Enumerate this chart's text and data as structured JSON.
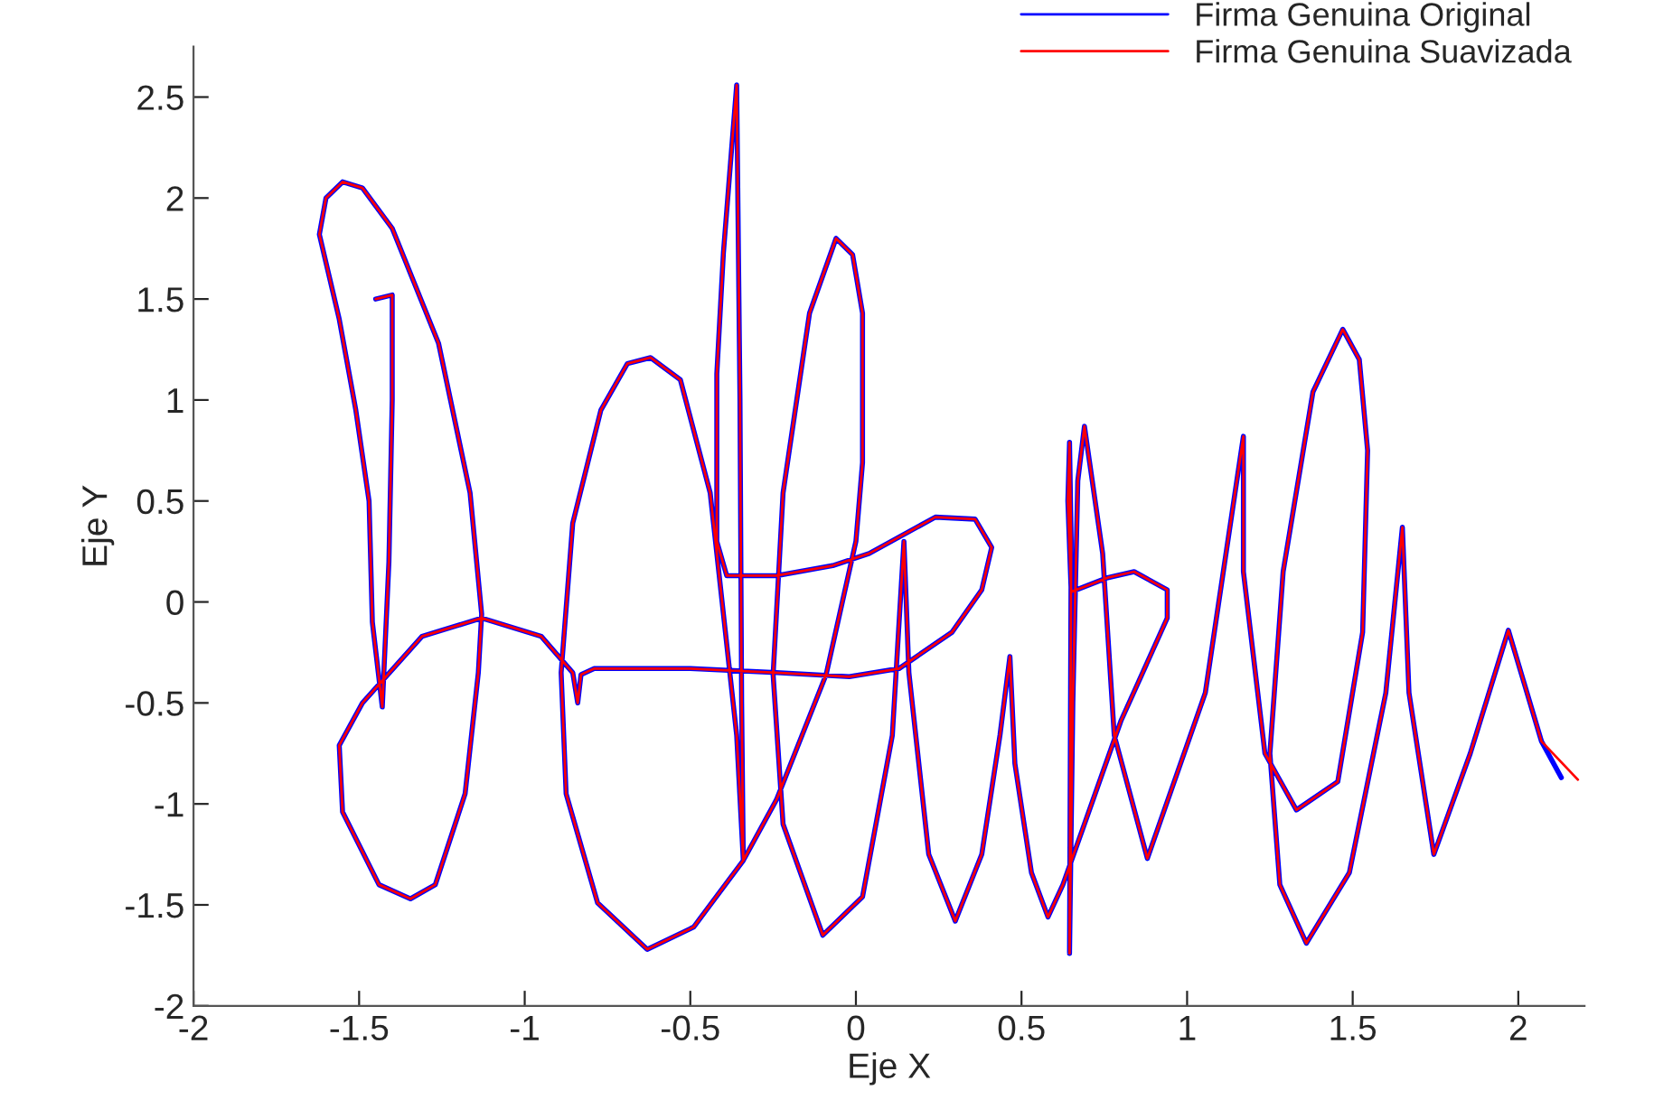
{
  "chart_data": {
    "type": "line",
    "xlabel": "Eje X",
    "ylabel": "Eje Y",
    "legend": "top right",
    "grid": false,
    "marker": "none",
    "line_style": "solid",
    "xlim": [
      -2,
      2.2
    ],
    "xticks": [
      -2,
      -1.5,
      -1,
      -0.5,
      0,
      0.5,
      1,
      1.5,
      2
    ],
    "ylim": [
      -2,
      2.75
    ],
    "yticks": [
      -2,
      -1.5,
      -1,
      -0.5,
      0,
      0.5,
      1,
      1.5,
      2,
      2.5
    ],
    "series": [
      {
        "name": "Firma Genuina Original",
        "color": "#0000ff",
        "x": [
          -1.45,
          -1.4,
          -1.4,
          -1.41,
          -1.43,
          -1.46,
          -1.47,
          -1.51,
          -1.56,
          -1.62,
          -1.6,
          -1.55,
          -1.49,
          -1.4,
          -1.26,
          -1.165,
          -1.13,
          -1.14,
          -1.18,
          -1.27,
          -1.345,
          -1.44,
          -1.55,
          -1.56,
          -1.49,
          -1.31,
          -1.13,
          -0.95,
          -0.855,
          -0.84,
          -0.83,
          -0.79,
          -0.5,
          -0.24,
          -0.02,
          0.13,
          0.29,
          0.38,
          0.41,
          0.36,
          0.24,
          0.04,
          -0.07,
          -0.24,
          -0.39,
          -0.42,
          -0.42,
          -0.4,
          -0.36,
          -0.35,
          -0.345,
          -0.34,
          -0.36,
          -0.4,
          -0.44,
          -0.53,
          -0.62,
          -0.69,
          -0.77,
          -0.855,
          -0.89,
          -0.875,
          -0.78,
          -0.63,
          -0.49,
          -0.34,
          -0.24,
          -0.09,
          0.0,
          0.02,
          0.02,
          -0.01,
          -0.06,
          -0.14,
          -0.22,
          -0.25,
          -0.22,
          -0.1,
          0.02,
          0.11,
          0.145,
          0.16,
          0.22,
          0.3,
          0.38,
          0.435,
          0.465,
          0.48,
          0.53,
          0.58,
          0.625,
          0.69,
          0.8,
          0.94,
          0.94,
          0.84,
          0.76,
          0.65,
          0.64,
          0.645,
          0.65,
          0.645,
          0.655,
          0.67,
          0.69,
          0.745,
          0.78,
          0.88,
          1.055,
          1.17,
          1.17,
          1.235,
          1.33,
          1.455,
          1.53,
          1.545,
          1.52,
          1.47,
          1.38,
          1.29,
          1.25,
          1.28,
          1.36,
          1.49,
          1.6,
          1.65,
          1.67,
          1.745,
          1.855,
          1.97,
          2.07,
          2.13
        ],
        "values": [
          1.5,
          1.52,
          1.0,
          0.2,
          -0.52,
          -0.1,
          0.5,
          0.95,
          1.4,
          1.82,
          2.0,
          2.08,
          2.05,
          1.85,
          1.28,
          0.54,
          -0.06,
          -0.35,
          -0.95,
          -1.4,
          -1.47,
          -1.4,
          -1.04,
          -0.71,
          -0.5,
          -0.17,
          -0.08,
          -0.17,
          -0.35,
          -0.5,
          -0.36,
          -0.33,
          -0.33,
          -0.35,
          -0.37,
          -0.33,
          -0.15,
          0.06,
          0.27,
          0.41,
          0.42,
          0.24,
          0.18,
          0.13,
          0.13,
          0.3,
          1.13,
          1.73,
          2.56,
          1.0,
          -0.5,
          -1.28,
          -0.66,
          -0.06,
          0.54,
          1.1,
          1.21,
          1.18,
          0.95,
          0.39,
          -0.35,
          -0.95,
          -1.49,
          -1.72,
          -1.61,
          -1.28,
          -0.98,
          -0.36,
          0.3,
          0.69,
          1.43,
          1.72,
          1.8,
          1.43,
          0.54,
          -0.36,
          -1.1,
          -1.65,
          -1.46,
          -0.66,
          0.3,
          -0.35,
          -1.25,
          -1.58,
          -1.25,
          -0.66,
          -0.27,
          -0.8,
          -1.34,
          -1.56,
          -1.4,
          -1.1,
          -0.59,
          -0.08,
          0.06,
          0.15,
          0.12,
          0.05,
          0.5,
          0.79,
          0.3,
          -1.74,
          -0.5,
          0.6,
          0.87,
          0.24,
          -0.66,
          -1.27,
          -0.45,
          0.82,
          0.15,
          -0.75,
          -1.03,
          -0.89,
          -0.15,
          0.75,
          1.2,
          1.35,
          1.04,
          0.15,
          -0.75,
          -1.4,
          -1.69,
          -1.34,
          -0.45,
          0.37,
          -0.45,
          -1.25,
          -0.75,
          -0.14,
          -0.69,
          -0.87
        ]
      },
      {
        "name": "Firma Genuina Suavizada",
        "color": "#ff0000",
        "x": [
          -1.45,
          -1.4,
          -1.4,
          -1.41,
          -1.43,
          -1.46,
          -1.47,
          -1.51,
          -1.56,
          -1.62,
          -1.6,
          -1.55,
          -1.49,
          -1.4,
          -1.26,
          -1.165,
          -1.13,
          -1.14,
          -1.18,
          -1.27,
          -1.345,
          -1.44,
          -1.55,
          -1.56,
          -1.49,
          -1.31,
          -1.13,
          -0.95,
          -0.855,
          -0.84,
          -0.83,
          -0.79,
          -0.5,
          -0.24,
          -0.02,
          0.13,
          0.29,
          0.38,
          0.41,
          0.36,
          0.24,
          0.04,
          -0.07,
          -0.24,
          -0.39,
          -0.42,
          -0.42,
          -0.4,
          -0.36,
          -0.35,
          -0.345,
          -0.34,
          -0.36,
          -0.4,
          -0.44,
          -0.53,
          -0.62,
          -0.69,
          -0.77,
          -0.855,
          -0.89,
          -0.875,
          -0.78,
          -0.63,
          -0.49,
          -0.34,
          -0.24,
          -0.09,
          0.0,
          0.02,
          0.02,
          -0.01,
          -0.06,
          -0.14,
          -0.22,
          -0.25,
          -0.22,
          -0.1,
          0.02,
          0.11,
          0.145,
          0.16,
          0.22,
          0.3,
          0.38,
          0.435,
          0.465,
          0.48,
          0.53,
          0.58,
          0.625,
          0.69,
          0.8,
          0.94,
          0.94,
          0.84,
          0.76,
          0.65,
          0.64,
          0.645,
          0.65,
          0.645,
          0.655,
          0.67,
          0.69,
          0.745,
          0.78,
          0.88,
          1.055,
          1.17,
          1.17,
          1.235,
          1.33,
          1.455,
          1.53,
          1.545,
          1.52,
          1.47,
          1.38,
          1.29,
          1.25,
          1.28,
          1.36,
          1.49,
          1.6,
          1.65,
          1.67,
          1.745,
          1.855,
          1.97,
          2.07,
          2.18
        ],
        "values": [
          1.5,
          1.52,
          1.0,
          0.2,
          -0.52,
          -0.1,
          0.5,
          0.95,
          1.4,
          1.82,
          2.0,
          2.08,
          2.05,
          1.85,
          1.28,
          0.54,
          -0.06,
          -0.35,
          -0.95,
          -1.4,
          -1.47,
          -1.4,
          -1.04,
          -0.71,
          -0.5,
          -0.17,
          -0.08,
          -0.17,
          -0.35,
          -0.5,
          -0.36,
          -0.33,
          -0.33,
          -0.35,
          -0.37,
          -0.33,
          -0.15,
          0.06,
          0.27,
          0.41,
          0.42,
          0.24,
          0.18,
          0.13,
          0.13,
          0.3,
          1.13,
          1.73,
          2.56,
          1.0,
          -0.5,
          -1.28,
          -0.66,
          -0.06,
          0.54,
          1.1,
          1.21,
          1.18,
          0.95,
          0.39,
          -0.35,
          -0.95,
          -1.49,
          -1.72,
          -1.61,
          -1.28,
          -0.98,
          -0.36,
          0.3,
          0.69,
          1.43,
          1.72,
          1.8,
          1.43,
          0.54,
          -0.36,
          -1.1,
          -1.65,
          -1.46,
          -0.66,
          0.3,
          -0.35,
          -1.25,
          -1.58,
          -1.25,
          -0.66,
          -0.27,
          -0.8,
          -1.34,
          -1.56,
          -1.4,
          -1.1,
          -0.59,
          -0.08,
          0.06,
          0.15,
          0.12,
          0.05,
          0.5,
          0.79,
          0.3,
          -1.74,
          -0.5,
          0.6,
          0.87,
          0.24,
          -0.66,
          -1.27,
          -0.45,
          0.82,
          0.15,
          -0.75,
          -1.03,
          -0.89,
          -0.15,
          0.75,
          1.2,
          1.35,
          1.04,
          0.15,
          -0.75,
          -1.4,
          -1.69,
          -1.34,
          -0.45,
          0.37,
          -0.45,
          -1.25,
          -0.75,
          -0.14,
          -0.69,
          -0.88
        ]
      }
    ]
  }
}
